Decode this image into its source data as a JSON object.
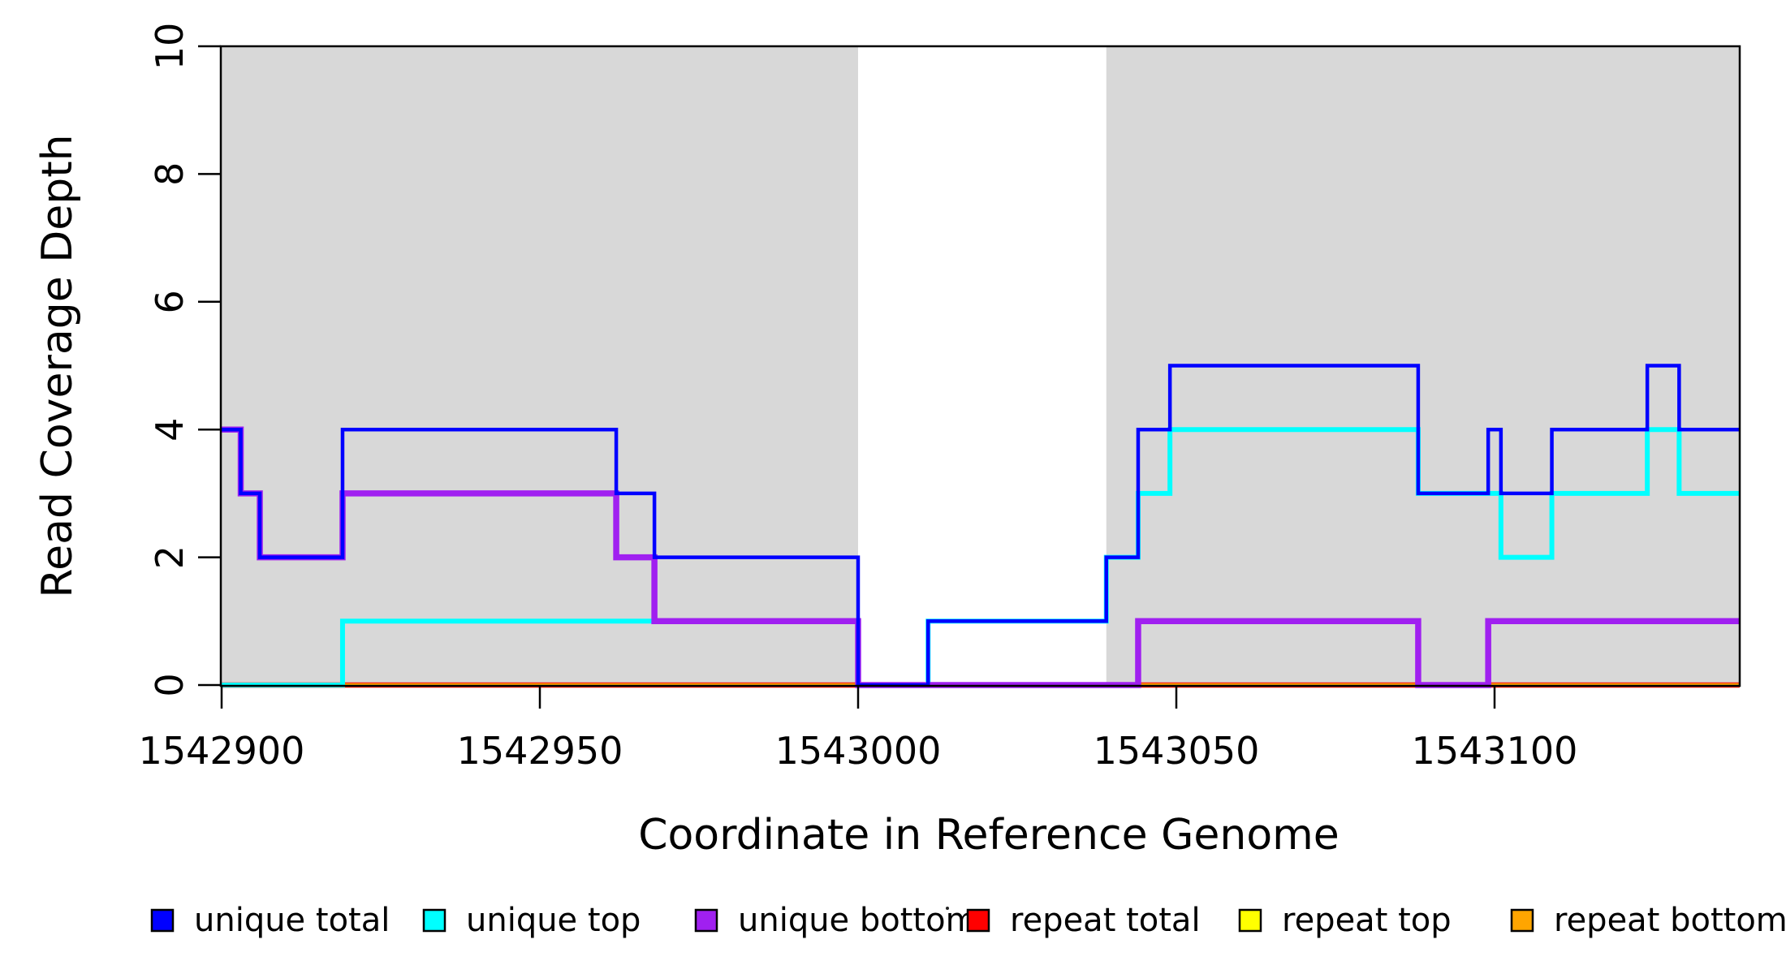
{
  "figure": {
    "background": "#FFFFFF",
    "border_color": "#000000",
    "shade_color": "#D8D8D8"
  },
  "chart_data": {
    "type": "line",
    "subtype": "step",
    "title": "",
    "xlabel": "Coordinate in Reference Genome",
    "ylabel": "Read Coverage Depth",
    "xlim": [
      1542899.9,
      1543138.5
    ],
    "ylim": [
      0,
      10
    ],
    "grid": false,
    "x_ticks": [
      1542900,
      1542950,
      1543000,
      1543050,
      1543100
    ],
    "x_tick_labels": [
      "1542900",
      "1542950",
      "1543000",
      "1543050",
      "1543100"
    ],
    "y_ticks": [
      0,
      2,
      4,
      6,
      8,
      10
    ],
    "y_tick_labels": [
      "0",
      "2",
      "4",
      "6",
      "8",
      "10"
    ],
    "shaded_regions": [
      {
        "from": 1542899.9,
        "to": 1543000
      },
      {
        "from": 1543039,
        "to": 1543138.5
      }
    ],
    "shade_color": "#D8D8D8",
    "draw_order": [
      "repeat top",
      "repeat total",
      "repeat bottom",
      "unique top",
      "unique bottom",
      "unique total"
    ],
    "series": [
      {
        "name": "unique total",
        "color": "#0000FF",
        "line_width": 4.5,
        "start": 4,
        "steps": [
          [
            1542903,
            3
          ],
          [
            1542906,
            2
          ],
          [
            1542919,
            4
          ],
          [
            1542962,
            3
          ],
          [
            1542968,
            2
          ],
          [
            1543000,
            0
          ],
          [
            1543011,
            1
          ],
          [
            1543039,
            2
          ],
          [
            1543044,
            4
          ],
          [
            1543049,
            5
          ],
          [
            1543088,
            3
          ],
          [
            1543099,
            4
          ],
          [
            1543101,
            3
          ],
          [
            1543109,
            4
          ],
          [
            1543124,
            5
          ],
          [
            1543129,
            4
          ]
        ]
      },
      {
        "name": "unique top",
        "color": "#00FFFF",
        "line_width": 6,
        "start": 0,
        "steps": [
          [
            1542919,
            1
          ],
          [
            1543000,
            0
          ],
          [
            1543011,
            1
          ],
          [
            1543039,
            2
          ],
          [
            1543044,
            3
          ],
          [
            1543049,
            4
          ],
          [
            1543088,
            3
          ],
          [
            1543101,
            2
          ],
          [
            1543109,
            3
          ],
          [
            1543124,
            4
          ],
          [
            1543129,
            3
          ]
        ]
      },
      {
        "name": "unique bottom",
        "color": "#A020F0",
        "line_width": 7.5,
        "start": 4,
        "steps": [
          [
            1542903,
            3
          ],
          [
            1542906,
            2
          ],
          [
            1542919,
            3
          ],
          [
            1542962,
            2
          ],
          [
            1542968,
            1
          ],
          [
            1543000,
            0
          ],
          [
            1543044,
            1
          ],
          [
            1543088,
            0
          ],
          [
            1543099,
            1
          ]
        ]
      },
      {
        "name": "repeat total",
        "color": "#FF0000",
        "line_width": 6.5,
        "start": 0,
        "steps": []
      },
      {
        "name": "repeat top",
        "color": "#FFFF00",
        "line_width": 4,
        "start": 0,
        "steps": []
      },
      {
        "name": "repeat bottom",
        "color": "#FFA500",
        "line_width": 4.5,
        "start": 0,
        "steps": []
      }
    ],
    "legend_position": "bottom",
    "legend": [
      {
        "label": "unique total",
        "color": "#0000FF"
      },
      {
        "label": "unique top",
        "color": "#00FFFF"
      },
      {
        "label": "unique bottom",
        "color": "#A020F0"
      },
      {
        "label": "repeat total",
        "color": "#FF0000"
      },
      {
        "label": "repeat top",
        "color": "#FFFF00"
      },
      {
        "label": "repeat bottom",
        "color": "#FFA500"
      }
    ]
  }
}
